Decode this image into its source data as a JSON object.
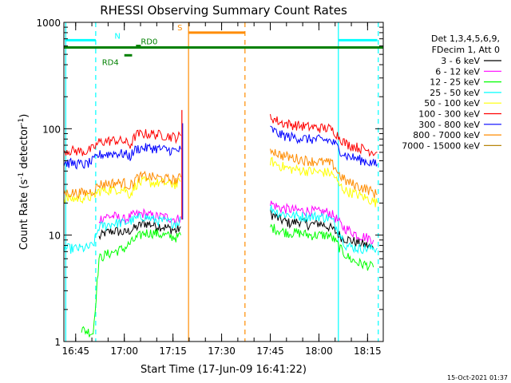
{
  "chart_data": {
    "type": "line",
    "title": "RHESSI Observing Summary Count Rates",
    "xlabel": "Start Time (17-Jun-09 16:41:22)",
    "ylabel_main": "Count Rate (s",
    "ylabel_sup1": "-1",
    "ylabel_mid": " detector",
    "ylabel_sup2": "-1",
    "ylabel_end": ")",
    "y_scale": "log",
    "ylim": [
      1,
      1000
    ],
    "xlim": [
      16.6894,
      18.3306
    ],
    "x_ticks": [
      {
        "value": 16.75,
        "label": "16:45"
      },
      {
        "value": 17.0,
        "label": "17:00"
      },
      {
        "value": 17.25,
        "label": "17:15"
      },
      {
        "value": 17.5,
        "label": "17:30"
      },
      {
        "value": 17.75,
        "label": "17:45"
      },
      {
        "value": 18.0,
        "label": "18:00"
      },
      {
        "value": 18.25,
        "label": "18:15"
      }
    ],
    "y_ticks": [
      {
        "value": 1,
        "label": "1"
      },
      {
        "value": 10,
        "label": "10"
      },
      {
        "value": 100,
        "label": "100"
      },
      {
        "value": 1000,
        "label": "1000"
      }
    ],
    "legend_position": "right",
    "legend_header": [
      "Det 1,3,4,5,6,9,",
      "FDecim 1, Att 0"
    ],
    "footer_date": "15-Oct-2021 01:37",
    "series": [
      {
        "name": "3 - 6 keV",
        "color": "#000000",
        "segments": [
          [
            [
              16.87,
              9.5
            ],
            [
              16.9,
              10.5
            ],
            [
              16.95,
              11
            ],
            [
              17.0,
              10.5
            ],
            [
              17.05,
              11.5
            ],
            [
              17.1,
              13
            ],
            [
              17.15,
              12.5
            ],
            [
              17.2,
              12
            ],
            [
              17.27,
              11
            ],
            [
              17.29,
              12
            ]
          ],
          [
            [
              17.75,
              16
            ],
            [
              17.8,
              14
            ],
            [
              17.85,
              13
            ],
            [
              17.9,
              13.5
            ],
            [
              17.95,
              12.5
            ],
            [
              18.0,
              13
            ],
            [
              18.05,
              12
            ],
            [
              18.08,
              11
            ],
            [
              18.12,
              9.5
            ],
            [
              18.16,
              9
            ],
            [
              18.2,
              8.5
            ],
            [
              18.25,
              8
            ],
            [
              18.28,
              7.5
            ]
          ]
        ]
      },
      {
        "name": "6 - 12 keV",
        "color": "#ff00ff",
        "segments": [
          [
            [
              16.87,
              14
            ],
            [
              16.9,
              15
            ],
            [
              16.95,
              15
            ],
            [
              17.0,
              14
            ],
            [
              17.05,
              15.5
            ],
            [
              17.1,
              16
            ],
            [
              17.15,
              15
            ],
            [
              17.2,
              15
            ],
            [
              17.27,
              14
            ],
            [
              17.29,
              15
            ]
          ],
          [
            [
              17.75,
              20
            ],
            [
              17.8,
              18
            ],
            [
              17.85,
              17.5
            ],
            [
              17.9,
              17
            ],
            [
              17.95,
              17
            ],
            [
              18.0,
              16.5
            ],
            [
              18.05,
              16.5
            ],
            [
              18.08,
              15
            ],
            [
              18.12,
              12
            ],
            [
              18.16,
              11
            ],
            [
              18.2,
              10
            ],
            [
              18.25,
              9.5
            ],
            [
              18.28,
              9
            ]
          ]
        ]
      },
      {
        "name": "12 - 25 keV",
        "color": "#00ff00",
        "segments": [
          [
            [
              16.78,
              1.3
            ],
            [
              16.84,
              1.2
            ],
            [
              16.87,
              6
            ],
            [
              16.9,
              6.5
            ],
            [
              16.95,
              7
            ],
            [
              17.0,
              7.5
            ],
            [
              17.05,
              9
            ],
            [
              17.1,
              10.5
            ],
            [
              17.15,
              10.5
            ],
            [
              17.2,
              10
            ],
            [
              17.27,
              9.5
            ],
            [
              17.29,
              10
            ]
          ],
          [
            [
              17.75,
              12
            ],
            [
              17.8,
              11
            ],
            [
              17.85,
              10.5
            ],
            [
              17.9,
              10.5
            ],
            [
              17.95,
              10
            ],
            [
              18.0,
              10
            ],
            [
              18.05,
              10
            ],
            [
              18.08,
              9
            ],
            [
              18.12,
              7
            ],
            [
              18.16,
              6
            ],
            [
              18.2,
              5.5
            ],
            [
              18.25,
              5.2
            ],
            [
              18.28,
              5
            ]
          ]
        ]
      },
      {
        "name": "25 - 50 keV",
        "color": "#00ffff",
        "segments": [
          [
            [
              16.69,
              7.5
            ],
            [
              16.75,
              7.5
            ],
            [
              16.8,
              7.5
            ],
            [
              16.84,
              8
            ],
            [
              16.87,
              12
            ],
            [
              16.95,
              13
            ],
            [
              17.0,
              13
            ],
            [
              17.05,
              14
            ],
            [
              17.1,
              15
            ],
            [
              17.15,
              14
            ],
            [
              17.2,
              13.5
            ],
            [
              17.27,
              13
            ],
            [
              17.29,
              14
            ]
          ],
          [
            [
              17.75,
              18
            ],
            [
              17.8,
              16
            ],
            [
              17.85,
              15.5
            ],
            [
              17.9,
              15
            ],
            [
              17.95,
              15
            ],
            [
              18.0,
              15
            ],
            [
              18.05,
              14.5
            ],
            [
              18.08,
              13
            ],
            [
              18.1,
              11
            ],
            [
              18.14,
              8
            ],
            [
              18.2,
              7.5
            ],
            [
              18.25,
              7.5
            ],
            [
              18.3,
              7.5
            ]
          ]
        ]
      },
      {
        "name": "50 - 100 keV",
        "color": "#ffff00",
        "segments": [
          [
            [
              16.69,
              22
            ],
            [
              16.75,
              22
            ],
            [
              16.8,
              22.5
            ],
            [
              16.84,
              23
            ],
            [
              16.87,
              26
            ],
            [
              16.95,
              27
            ],
            [
              17.0,
              27
            ],
            [
              17.03,
              24
            ],
            [
              17.06,
              30
            ],
            [
              17.1,
              32
            ],
            [
              17.15,
              31
            ],
            [
              17.2,
              31
            ],
            [
              17.27,
              30
            ],
            [
              17.29,
              32
            ]
          ],
          [
            [
              17.75,
              50
            ],
            [
              17.8,
              45
            ],
            [
              17.85,
              42
            ],
            [
              17.9,
              41
            ],
            [
              17.95,
              40
            ],
            [
              18.0,
              39
            ],
            [
              18.05,
              39
            ],
            [
              18.08,
              36
            ],
            [
              18.1,
              30
            ],
            [
              18.14,
              26
            ],
            [
              18.2,
              24
            ],
            [
              18.25,
              22
            ],
            [
              18.3,
              20
            ]
          ]
        ]
      },
      {
        "name": "100 - 300 keV",
        "color": "#ff0000",
        "segments": [
          [
            [
              16.69,
              63
            ],
            [
              16.75,
              62
            ],
            [
              16.8,
              61
            ],
            [
              16.84,
              65
            ],
            [
              16.87,
              75
            ],
            [
              16.95,
              78
            ],
            [
              17.0,
              76
            ],
            [
              17.03,
              70
            ],
            [
              17.06,
              88
            ],
            [
              17.1,
              90
            ],
            [
              17.15,
              89
            ],
            [
              17.2,
              87
            ],
            [
              17.27,
              83
            ],
            [
              17.29,
              86
            ]
          ],
          [
            [
              17.75,
              130
            ],
            [
              17.8,
              115
            ],
            [
              17.85,
              110
            ],
            [
              17.9,
              107
            ],
            [
              17.95,
              104
            ],
            [
              18.0,
              102
            ],
            [
              18.05,
              101
            ],
            [
              18.08,
              95
            ],
            [
              18.1,
              85
            ],
            [
              18.14,
              72
            ],
            [
              18.2,
              67
            ],
            [
              18.25,
              63
            ],
            [
              18.3,
              60
            ]
          ]
        ]
      },
      {
        "name": "300 - 800 keV",
        "color": "#0000ff",
        "segments": [
          [
            [
              16.69,
              48
            ],
            [
              16.75,
              47
            ],
            [
              16.8,
              46
            ],
            [
              16.84,
              50
            ],
            [
              16.87,
              57
            ],
            [
              16.95,
              59
            ],
            [
              17.0,
              58
            ],
            [
              17.03,
              55
            ],
            [
              17.06,
              65
            ],
            [
              17.1,
              66
            ],
            [
              17.15,
              66
            ],
            [
              17.2,
              64
            ],
            [
              17.27,
              62
            ],
            [
              17.29,
              64
            ]
          ],
          [
            [
              17.75,
              100
            ],
            [
              17.8,
              88
            ],
            [
              17.85,
              84
            ],
            [
              17.9,
              82
            ],
            [
              17.95,
              80
            ],
            [
              18.0,
              79
            ],
            [
              18.05,
              78
            ],
            [
              18.08,
              73
            ],
            [
              18.1,
              65
            ],
            [
              18.14,
              56
            ],
            [
              18.2,
              52
            ],
            [
              18.25,
              49
            ],
            [
              18.3,
              46
            ]
          ]
        ]
      },
      {
        "name": "800 - 7000 keV",
        "color": "#ff8c00",
        "segments": [
          [
            [
              16.69,
              25
            ],
            [
              16.75,
              25
            ],
            [
              16.8,
              25
            ],
            [
              16.84,
              26
            ],
            [
              16.87,
              30
            ],
            [
              16.95,
              31
            ],
            [
              17.0,
              31
            ],
            [
              17.03,
              29
            ],
            [
              17.06,
              34
            ],
            [
              17.1,
              36
            ],
            [
              17.15,
              35
            ],
            [
              17.2,
              34
            ],
            [
              17.27,
              33
            ],
            [
              17.29,
              35
            ]
          ],
          [
            [
              17.75,
              65
            ],
            [
              17.8,
              57
            ],
            [
              17.85,
              54
            ],
            [
              17.9,
              52
            ],
            [
              17.95,
              50
            ],
            [
              18.0,
              49
            ],
            [
              18.05,
              48
            ],
            [
              18.08,
              45
            ],
            [
              18.1,
              38
            ],
            [
              18.14,
              32
            ],
            [
              18.2,
              29
            ],
            [
              18.25,
              27
            ],
            [
              18.3,
              24
            ]
          ]
        ]
      },
      {
        "name": "7000 - 15000 keV",
        "color": "#b8860b",
        "segments": []
      }
    ],
    "bars": [
      {
        "label": "N",
        "color": "#00ffff",
        "ranges": [
          [
            16.695,
            16.853
          ],
          [
            18.1,
            18.3
          ]
        ]
      },
      {
        "label": "S",
        "color": "#ff8c00",
        "ranges": [
          [
            17.33,
            17.62
          ]
        ]
      },
      {
        "label": "RD0",
        "color": "#008000",
        "ranges": [
          [
            17.06,
            17.085
          ]
        ]
      },
      {
        "label": "RD4",
        "color": "#008000",
        "ranges": [
          [
            17.0,
            17.04
          ]
        ]
      }
    ],
    "night_long_bar": {
      "color": "#008000",
      "range": [
        16.69,
        18.33
      ],
      "value": 580
    },
    "vertical_lines": [
      {
        "x": 16.699,
        "color": "#00ffff",
        "style": "solid"
      },
      {
        "x": 16.853,
        "color": "#00ffff",
        "style": "dashed"
      },
      {
        "x": 17.33,
        "color": "#ff8c00",
        "style": "solid"
      },
      {
        "x": 17.62,
        "color": "#ff8c00",
        "style": "dashed"
      },
      {
        "x": 18.1,
        "color": "#00ffff",
        "style": "solid"
      },
      {
        "x": 18.305,
        "color": "#00ffff",
        "style": "dashed"
      }
    ],
    "flare_spike": {
      "x": 17.3,
      "value": 150
    }
  }
}
